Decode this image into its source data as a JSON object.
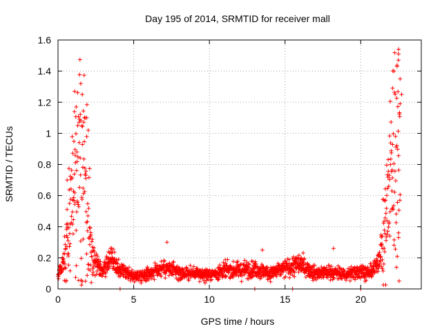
{
  "chart_data": {
    "type": "scatter",
    "title": "Day 195 of 2014, SRMTID for receiver mall",
    "xlabel": "GPS time / hours",
    "ylabel": "SRMTID / TECUs",
    "xlim": [
      0,
      24
    ],
    "ylim": [
      0,
      1.6
    ],
    "x_ticks": [
      0,
      5,
      10,
      15,
      20
    ],
    "x_tick_labels": [
      "0",
      "5",
      "10",
      "15",
      "20"
    ],
    "y_ticks": [
      0,
      0.2,
      0.4,
      0.6,
      0.8,
      1,
      1.2,
      1.4,
      1.6
    ],
    "y_tick_labels": [
      "0",
      "0.2",
      "0.4",
      "0.6",
      "0.8",
      "1",
      "1.2",
      "1.4",
      "1.6"
    ],
    "grid": true,
    "marker": "+",
    "color": "#ff0000",
    "series": [
      {
        "name": "SRMTID",
        "profile": [
          {
            "x": 0.0,
            "y": 0.1
          },
          {
            "x": 0.5,
            "y": 0.2
          },
          {
            "x": 0.8,
            "y": 0.45
          },
          {
            "x": 1.0,
            "y": 0.6
          },
          {
            "x": 1.3,
            "y": 0.85
          },
          {
            "x": 1.6,
            "y": 0.75
          },
          {
            "x": 2.0,
            "y": 0.45
          },
          {
            "x": 2.3,
            "y": 0.2
          },
          {
            "x": 3.0,
            "y": 0.12
          },
          {
            "x": 3.5,
            "y": 0.2
          },
          {
            "x": 4.0,
            "y": 0.12
          },
          {
            "x": 5.0,
            "y": 0.08
          },
          {
            "x": 6.0,
            "y": 0.1
          },
          {
            "x": 7.0,
            "y": 0.14
          },
          {
            "x": 8.0,
            "y": 0.1
          },
          {
            "x": 9.0,
            "y": 0.1
          },
          {
            "x": 10.0,
            "y": 0.09
          },
          {
            "x": 11.0,
            "y": 0.12
          },
          {
            "x": 12.0,
            "y": 0.12
          },
          {
            "x": 13.0,
            "y": 0.13
          },
          {
            "x": 14.0,
            "y": 0.1
          },
          {
            "x": 15.0,
            "y": 0.13
          },
          {
            "x": 16.0,
            "y": 0.16
          },
          {
            "x": 17.0,
            "y": 0.1
          },
          {
            "x": 18.0,
            "y": 0.11
          },
          {
            "x": 19.0,
            "y": 0.09
          },
          {
            "x": 20.0,
            "y": 0.12
          },
          {
            "x": 20.5,
            "y": 0.1
          },
          {
            "x": 21.0,
            "y": 0.14
          },
          {
            "x": 21.5,
            "y": 0.3
          },
          {
            "x": 21.8,
            "y": 0.55
          },
          {
            "x": 22.0,
            "y": 0.8
          },
          {
            "x": 22.3,
            "y": 0.95
          },
          {
            "x": 22.6,
            "y": 0.8
          }
        ],
        "highlights": [
          {
            "x": 1.1,
            "y": 1.27
          },
          {
            "x": 1.2,
            "y": 1.17
          },
          {
            "x": 1.5,
            "y": 1.32
          },
          {
            "x": 1.6,
            "y": 1.25
          },
          {
            "x": 1.9,
            "y": 1.1
          },
          {
            "x": 2.0,
            "y": 1.02
          },
          {
            "x": 1.3,
            "y": 1.05
          },
          {
            "x": 0.6,
            "y": 0.7
          },
          {
            "x": 7.2,
            "y": 0.3
          },
          {
            "x": 18.2,
            "y": 0.26
          },
          {
            "x": 13.5,
            "y": 0.25
          },
          {
            "x": 22.2,
            "y": 1.4
          },
          {
            "x": 22.5,
            "y": 1.54
          },
          {
            "x": 22.5,
            "y": 1.51
          },
          {
            "x": 22.1,
            "y": 1.29
          },
          {
            "x": 22.6,
            "y": 1.35
          },
          {
            "x": 22.7,
            "y": 1.25
          },
          {
            "x": 22.4,
            "y": 1.43
          },
          {
            "x": 22.6,
            "y": 1.19
          },
          {
            "x": 22.5,
            "y": 0.36
          },
          {
            "x": 22.5,
            "y": 0.33
          },
          {
            "x": 4.1,
            "y": 0.0
          },
          {
            "x": 13.0,
            "y": 0.0
          },
          {
            "x": 15.5,
            "y": 0.0
          },
          {
            "x": 20.0,
            "y": 0.0
          }
        ]
      }
    ]
  }
}
